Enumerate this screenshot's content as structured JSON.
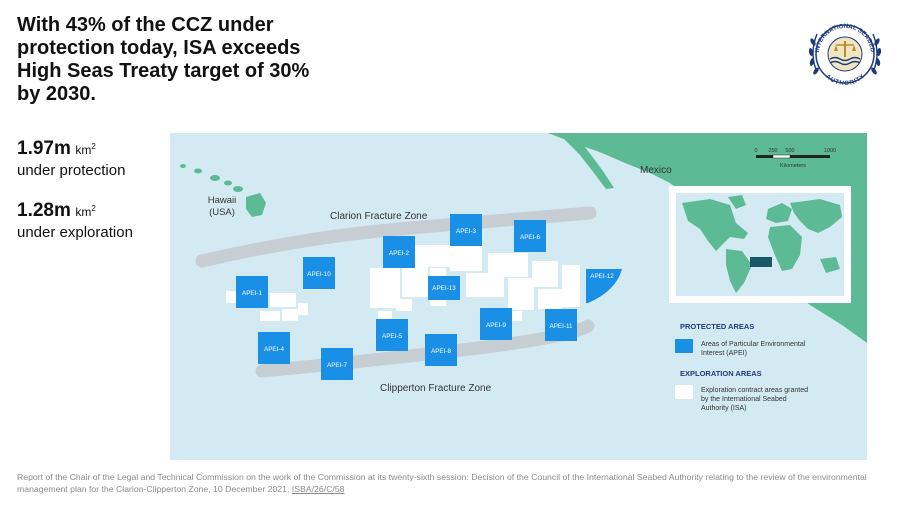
{
  "headline": "With 43% of the CCZ under protection today, ISA exceeds High Seas Treaty target of 30% by 2030.",
  "stats": [
    {
      "value": "1.97m",
      "unit": "km",
      "sup": "2",
      "label": "under protection"
    },
    {
      "value": "1.28m",
      "unit": "km",
      "sup": "2",
      "label": "under exploration"
    }
  ],
  "logo": {
    "text_top": "INTERNATIONAL SEABED",
    "text_bottom": "AUTHORITY",
    "icon": "isa-seal-icon"
  },
  "map": {
    "labels": {
      "mexico": "Mexico",
      "hawaii_line1": "Hawaii",
      "hawaii_line2": "(USA)",
      "clarion": "Clarion Fracture Zone",
      "clipperton": "Clipperton Fracture Zone"
    },
    "scale": {
      "ticks": [
        "0",
        "250",
        "500",
        "1000"
      ],
      "unit": "Kilometers"
    },
    "apei": [
      "APEI-1",
      "APEI-2",
      "APEI-3",
      "APEI-4",
      "APEI-5",
      "APEI-6",
      "APEI-7",
      "APEI-8",
      "APEI-9",
      "APEI-10",
      "APEI-11",
      "APEI-12",
      "APEI-13"
    ],
    "legend": {
      "protected_title": "PROTECTED AREAS",
      "protected_item_line1": "Areas of Particular Environmental",
      "protected_item_line2": "Interest (APEI)",
      "exploration_title": "EXPLORATION AREAS",
      "exploration_item_line1": "Exploration contract areas granted",
      "exploration_item_line2": "by the International Seabed",
      "exploration_item_line3": "Authority (ISA)"
    },
    "colors": {
      "ocean": "#d4eaf3",
      "land": "#5cbb95",
      "apei": "#1a8fe6",
      "exploration": "#ffffff",
      "fracture_zone": "#c6cdd3",
      "ccz_box": "#18596a"
    }
  },
  "footer": {
    "text": "Report of the Chair of the Legal and Technical Commission on the work of the Commission at its twenty-sixth session: Decision of the Council of the International Seabed Authority relating to the review of the environmental management plan for the Clarion-Clipperton Zone, 10 December 2021, ",
    "link": "ISBA/26/C/58"
  }
}
